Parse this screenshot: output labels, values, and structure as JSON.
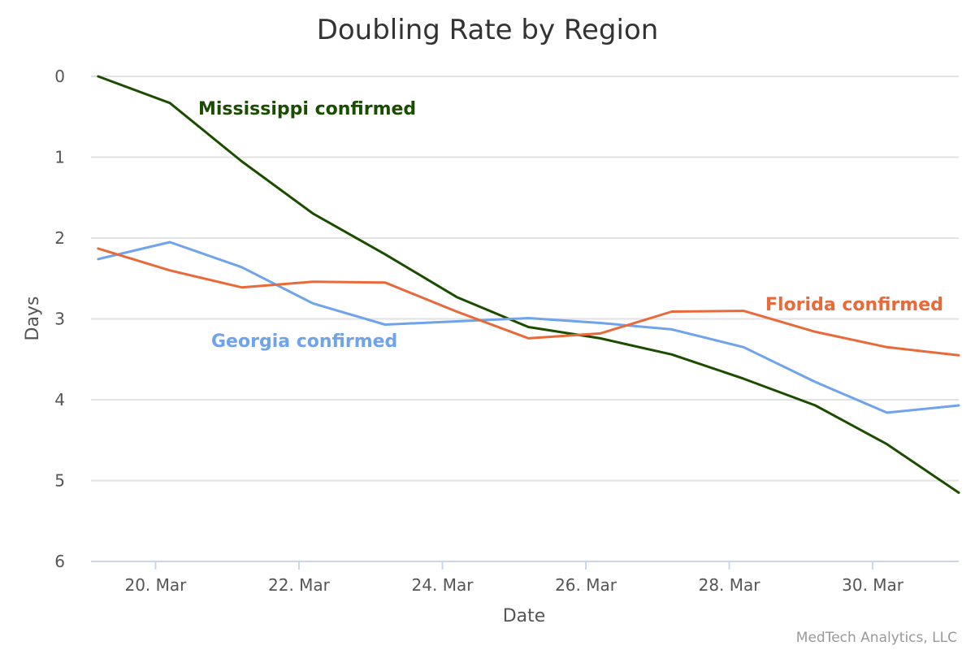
{
  "chart_data": {
    "type": "line",
    "title": "Doubling Rate by Region",
    "xlabel": "Date",
    "ylabel": "Days",
    "ylim": [
      0,
      6
    ],
    "y_reversed": true,
    "yticks": [
      "0",
      "1",
      "2",
      "3",
      "4",
      "5",
      "6"
    ],
    "xticks": [
      "20. Mar",
      "22. Mar",
      "24. Mar",
      "26. Mar",
      "28. Mar",
      "30. Mar"
    ],
    "xtick_positions": [
      20,
      22,
      24,
      26,
      28,
      30
    ],
    "xlim": [
      19.1,
      31.2
    ],
    "x": [
      19.2,
      20.2,
      21.2,
      22.2,
      23.2,
      24.2,
      25.2,
      26.2,
      27.2,
      28.2,
      29.2,
      30.2,
      31.2
    ],
    "grid": true,
    "legend": "inline labels",
    "series": [
      {
        "name": "Mississippi confirmed",
        "color": "#1b4d00",
        "values": [
          0.0,
          0.33,
          1.05,
          1.7,
          2.2,
          2.73,
          3.1,
          3.24,
          3.44,
          3.74,
          4.07,
          4.55,
          5.15
        ]
      },
      {
        "name": "Georgia confirmed",
        "color": "#6fa3ec",
        "values": [
          2.26,
          2.05,
          2.36,
          2.81,
          3.07,
          3.03,
          2.99,
          3.05,
          3.13,
          3.35,
          3.78,
          4.16,
          4.07
        ]
      },
      {
        "name": "Florida confirmed",
        "color": "#e86a3a",
        "values": [
          2.13,
          2.4,
          2.61,
          2.54,
          2.55,
          2.91,
          3.24,
          3.18,
          2.91,
          2.9,
          3.16,
          3.35,
          3.45
        ]
      }
    ],
    "credit": "MedTech Analytics, LLC"
  }
}
